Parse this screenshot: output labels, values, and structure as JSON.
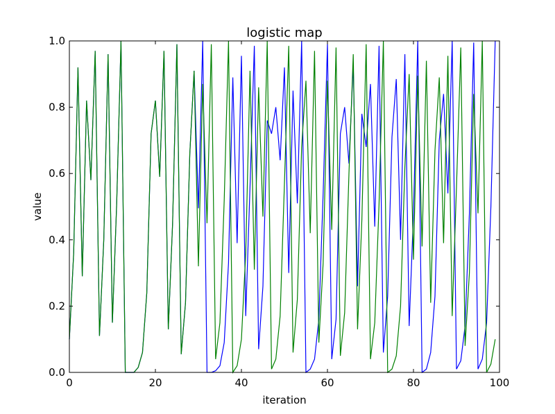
{
  "chart_data": {
    "type": "line",
    "title": "logistic map",
    "xlabel": "iteration",
    "ylabel": "value",
    "xlim": [
      0,
      100
    ],
    "ylim": [
      0,
      1.0
    ],
    "xticks": [
      0,
      20,
      40,
      60,
      80,
      100
    ],
    "yticks": [
      0.0,
      0.2,
      0.4,
      0.6,
      0.8,
      1.0
    ],
    "xtick_labels": [
      "0",
      "20",
      "40",
      "60",
      "80",
      "100"
    ],
    "ytick_labels": [
      "0.0",
      "0.2",
      "0.4",
      "0.6",
      "0.8",
      "1.0"
    ],
    "grid": false,
    "legend": "none",
    "series": [
      {
        "color": "#0000ff",
        "x": [
          0,
          1,
          2,
          3,
          4,
          5,
          6,
          7,
          8,
          9,
          10,
          11,
          12,
          13,
          14,
          15,
          16,
          17,
          18,
          19,
          20,
          21,
          22,
          23,
          24,
          25,
          26,
          27,
          28,
          29,
          30,
          31,
          32,
          33,
          34,
          35,
          36,
          37,
          38,
          39,
          40,
          41,
          42,
          43,
          44,
          45,
          46,
          47,
          48,
          49,
          50,
          51,
          52,
          53,
          54,
          55,
          56,
          57,
          58,
          59,
          60,
          61,
          62,
          63,
          64,
          65,
          66,
          67,
          68,
          69,
          70,
          71,
          72,
          73,
          74,
          75,
          76,
          77,
          78,
          79,
          80,
          81,
          82,
          83,
          84,
          85,
          86,
          87,
          88,
          89,
          90,
          91,
          92,
          93,
          94,
          95,
          96,
          97,
          98,
          99
        ],
        "values": [
          0.1,
          0.36,
          0.92,
          0.29,
          0.82,
          0.58,
          0.97,
          0.11,
          0.4,
          0.96,
          0.15,
          0.51,
          1.0,
          0.0,
          0.0,
          0.0,
          0.015,
          0.06,
          0.24,
          0.72,
          0.82,
          0.59,
          0.97,
          0.13,
          0.45,
          0.99,
          0.055,
          0.21,
          0.66,
          0.91,
          0.495,
          1.0,
          0.0,
          0.0,
          0.005,
          0.02,
          0.09,
          0.33,
          0.89,
          0.39,
          0.955,
          0.17,
          0.56,
          0.985,
          0.07,
          0.26,
          0.76,
          0.72,
          0.8,
          0.64,
          0.92,
          0.3,
          0.85,
          0.51,
          1.0,
          0.0,
          0.01,
          0.04,
          0.16,
          0.54,
          0.99,
          0.04,
          0.16,
          0.72,
          0.8,
          0.63,
          0.93,
          0.26,
          0.78,
          0.68,
          0.87,
          0.44,
          0.985,
          0.06,
          0.23,
          0.71,
          0.885,
          0.4,
          0.96,
          0.14,
          0.48,
          1.0,
          0.0,
          0.01,
          0.06,
          0.23,
          0.7,
          0.84,
          0.54,
          1.0,
          0.01,
          0.035,
          0.14,
          0.48,
          0.995,
          0.01,
          0.04,
          0.15,
          0.5,
          1.0
        ]
      },
      {
        "color": "#008000",
        "x": [
          0,
          1,
          2,
          3,
          4,
          5,
          6,
          7,
          8,
          9,
          10,
          11,
          12,
          13,
          14,
          15,
          16,
          17,
          18,
          19,
          20,
          21,
          22,
          23,
          24,
          25,
          26,
          27,
          28,
          29,
          30,
          31,
          32,
          33,
          34,
          35,
          36,
          37,
          38,
          39,
          40,
          41,
          42,
          43,
          44,
          45,
          46,
          47,
          48,
          49,
          50,
          51,
          52,
          53,
          54,
          55,
          56,
          57,
          58,
          59,
          60,
          61,
          62,
          63,
          64,
          65,
          66,
          67,
          68,
          69,
          70,
          71,
          72,
          73,
          74,
          75,
          76,
          77,
          78,
          79,
          80,
          81,
          82,
          83,
          84,
          85,
          86,
          87,
          88,
          89,
          90,
          91,
          92,
          93,
          94,
          95,
          96,
          97,
          98,
          99
        ],
        "values": [
          0.1,
          0.36,
          0.92,
          0.29,
          0.82,
          0.58,
          0.97,
          0.11,
          0.4,
          0.96,
          0.15,
          0.51,
          1.0,
          0.0,
          0.0,
          0.0,
          0.015,
          0.06,
          0.24,
          0.72,
          0.82,
          0.59,
          0.97,
          0.13,
          0.45,
          0.99,
          0.055,
          0.21,
          0.66,
          0.91,
          0.32,
          0.87,
          0.45,
          0.99,
          0.04,
          0.15,
          0.52,
          1.0,
          0.0,
          0.02,
          0.1,
          0.36,
          0.91,
          0.31,
          0.86,
          0.47,
          1.0,
          0.01,
          0.04,
          0.17,
          0.57,
          0.985,
          0.06,
          0.22,
          0.68,
          0.88,
          0.42,
          0.97,
          0.09,
          0.33,
          0.88,
          0.43,
          0.98,
          0.05,
          0.18,
          0.6,
          0.96,
          0.13,
          0.46,
          0.99,
          0.04,
          0.15,
          0.51,
          1.0,
          0.0,
          0.01,
          0.05,
          0.2,
          0.62,
          0.9,
          0.34,
          0.895,
          0.38,
          0.94,
          0.21,
          0.67,
          0.89,
          0.39,
          0.955,
          0.17,
          0.56,
          0.98,
          0.08,
          0.3,
          0.84,
          0.48,
          1.0,
          0.0,
          0.025,
          0.1
        ]
      }
    ]
  }
}
